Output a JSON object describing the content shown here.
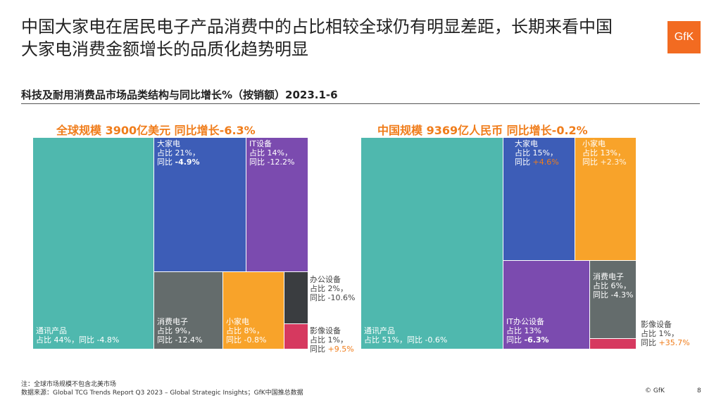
{
  "title": {
    "line1": "中国大家电在居民电子产品消费中的占比相较全球仍有明显差距，长期来看中国",
    "line2": "大家电消费金额增长的品质化趋势明显"
  },
  "logo_text": "GfK",
  "subtitle": "科技及耐用消费品市场品类结构与同比增长%（按销额）2023.1-6",
  "colors": {
    "teal": "#4fb8ae",
    "blue": "#3d5db7",
    "purple": "#7b4baf",
    "gray": "#646c6c",
    "orange": "#f8a32a",
    "dark": "#3a3d40",
    "pink": "#d6395f",
    "accent_orange": "#f07d1b"
  },
  "chart_data": [
    {
      "type": "treemap",
      "title": "全球规模 3900亿美元  同比增长-6.3%",
      "items": [
        {
          "name": "通讯产品",
          "share_label": "占比 44%，同比 -4.8%",
          "share": 44,
          "growth": -4.8
        },
        {
          "name": "大家电",
          "share_label": "占比 21%，",
          "growth_label": "同比 ",
          "growth_value": "-4.9%",
          "share": 21,
          "growth": -4.9
        },
        {
          "name": "IT设备",
          "share_label": "占比 14%，",
          "growth_label": "同比 -12.2%",
          "share": 14,
          "growth": -12.2
        },
        {
          "name": "消费电子",
          "share_label": "占比 9%，",
          "growth_label": "同比 -12.4%",
          "share": 9,
          "growth": -12.4
        },
        {
          "name": "小家电",
          "share_label": "占比 8%，",
          "growth_label": "同比 -0.8%",
          "share": 8,
          "growth": -0.8
        },
        {
          "name": "办公设备",
          "share_label": "占比 2%，",
          "growth_label": "同比 -10.6%",
          "share": 2,
          "growth": -10.6
        },
        {
          "name": "影像设备",
          "share_label": "占比 1%，",
          "growth_label": "同比 ",
          "growth_value": "+9.5%",
          "share": 1,
          "growth": 9.5
        }
      ]
    },
    {
      "type": "treemap",
      "title": "中国规模 9369亿人民币  同比增长-0.2%",
      "items": [
        {
          "name": "通讯产品",
          "share_label": "占比 51%，同比 -0.6%",
          "share": 51,
          "growth": -0.6
        },
        {
          "name": "大家电",
          "share_label": "占比 15%，",
          "growth_label": "同比 ",
          "growth_value": "+4.6%",
          "share": 15,
          "growth": 4.6
        },
        {
          "name": "小家电",
          "share_label": "占比 13%，",
          "growth_label": "同比 ",
          "growth_value": "+2.3%",
          "share": 13,
          "growth": 2.3
        },
        {
          "name": "IT办公设备",
          "share_label": "占比 13%",
          "growth_label": "同比 ",
          "growth_value": "-6.3%",
          "share": 13,
          "growth": -6.3
        },
        {
          "name": "消费电子",
          "share_label": "占比 6%，",
          "growth_label": "同比 -4.3%",
          "share": 6,
          "growth": -4.3
        },
        {
          "name": "影像设备",
          "share_label": "占比 1%，",
          "growth_label": "同比 ",
          "growth_value": "+35.7%",
          "share": 1,
          "growth": 35.7
        }
      ]
    }
  ],
  "footer": {
    "note": "注：全球市场规模不包含北美市场",
    "source": "数据来源：Global TCG Trends Report Q3 2023 – Global Strategic Insights；GfK中国推总数据",
    "copyright": "© GfK",
    "page": "8"
  }
}
